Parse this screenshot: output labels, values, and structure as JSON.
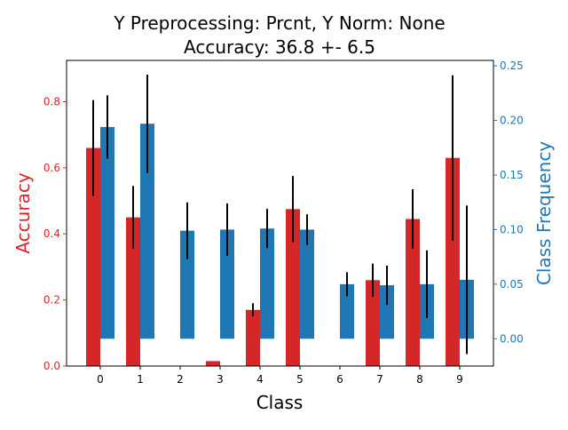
{
  "chart_data": {
    "type": "bar",
    "title_line1": "Y Preprocessing: Prcnt, Y Norm: None",
    "title_line2": "Accuracy: 36.8 +- 6.5",
    "xlabel": "Class",
    "ylabel_left": "Accuracy",
    "ylabel_right": "Class Frequency",
    "categories": [
      "0",
      "1",
      "2",
      "3",
      "4",
      "5",
      "6",
      "7",
      "8",
      "9"
    ],
    "left_axis": {
      "ylim": [
        0,
        0.925
      ],
      "ticks": [
        0.0,
        0.2,
        0.4,
        0.6,
        0.8
      ],
      "tick_labels": [
        "0.0",
        "0.2",
        "0.4",
        "0.6",
        "0.8"
      ],
      "color": "#d62728"
    },
    "right_axis": {
      "ylim": [
        -0.025,
        0.255
      ],
      "ticks": [
        0.0,
        0.05,
        0.1,
        0.15,
        0.2,
        0.25
      ],
      "tick_labels": [
        "0.00",
        "0.05",
        "0.10",
        "0.15",
        "0.20",
        "0.25"
      ],
      "color": "#1f77b4"
    },
    "series": [
      {
        "axis": "left",
        "color": "#d62728",
        "values": [
          0.66,
          0.45,
          0.0,
          0.015,
          0.17,
          0.475,
          0.0,
          0.26,
          0.445,
          0.63
        ],
        "errors": [
          0.145,
          0.095,
          0.0,
          0.0,
          0.02,
          0.1,
          0.0,
          0.05,
          0.09,
          0.25
        ]
      },
      {
        "axis": "right",
        "color": "#1f77b4",
        "values": [
          0.194,
          0.197,
          0.099,
          0.1,
          0.101,
          0.1,
          0.05,
          0.049,
          0.05,
          0.054
        ],
        "errors": [
          0.029,
          0.045,
          0.026,
          0.024,
          0.018,
          0.014,
          0.011,
          0.018,
          0.031,
          0.068
        ]
      }
    ]
  }
}
